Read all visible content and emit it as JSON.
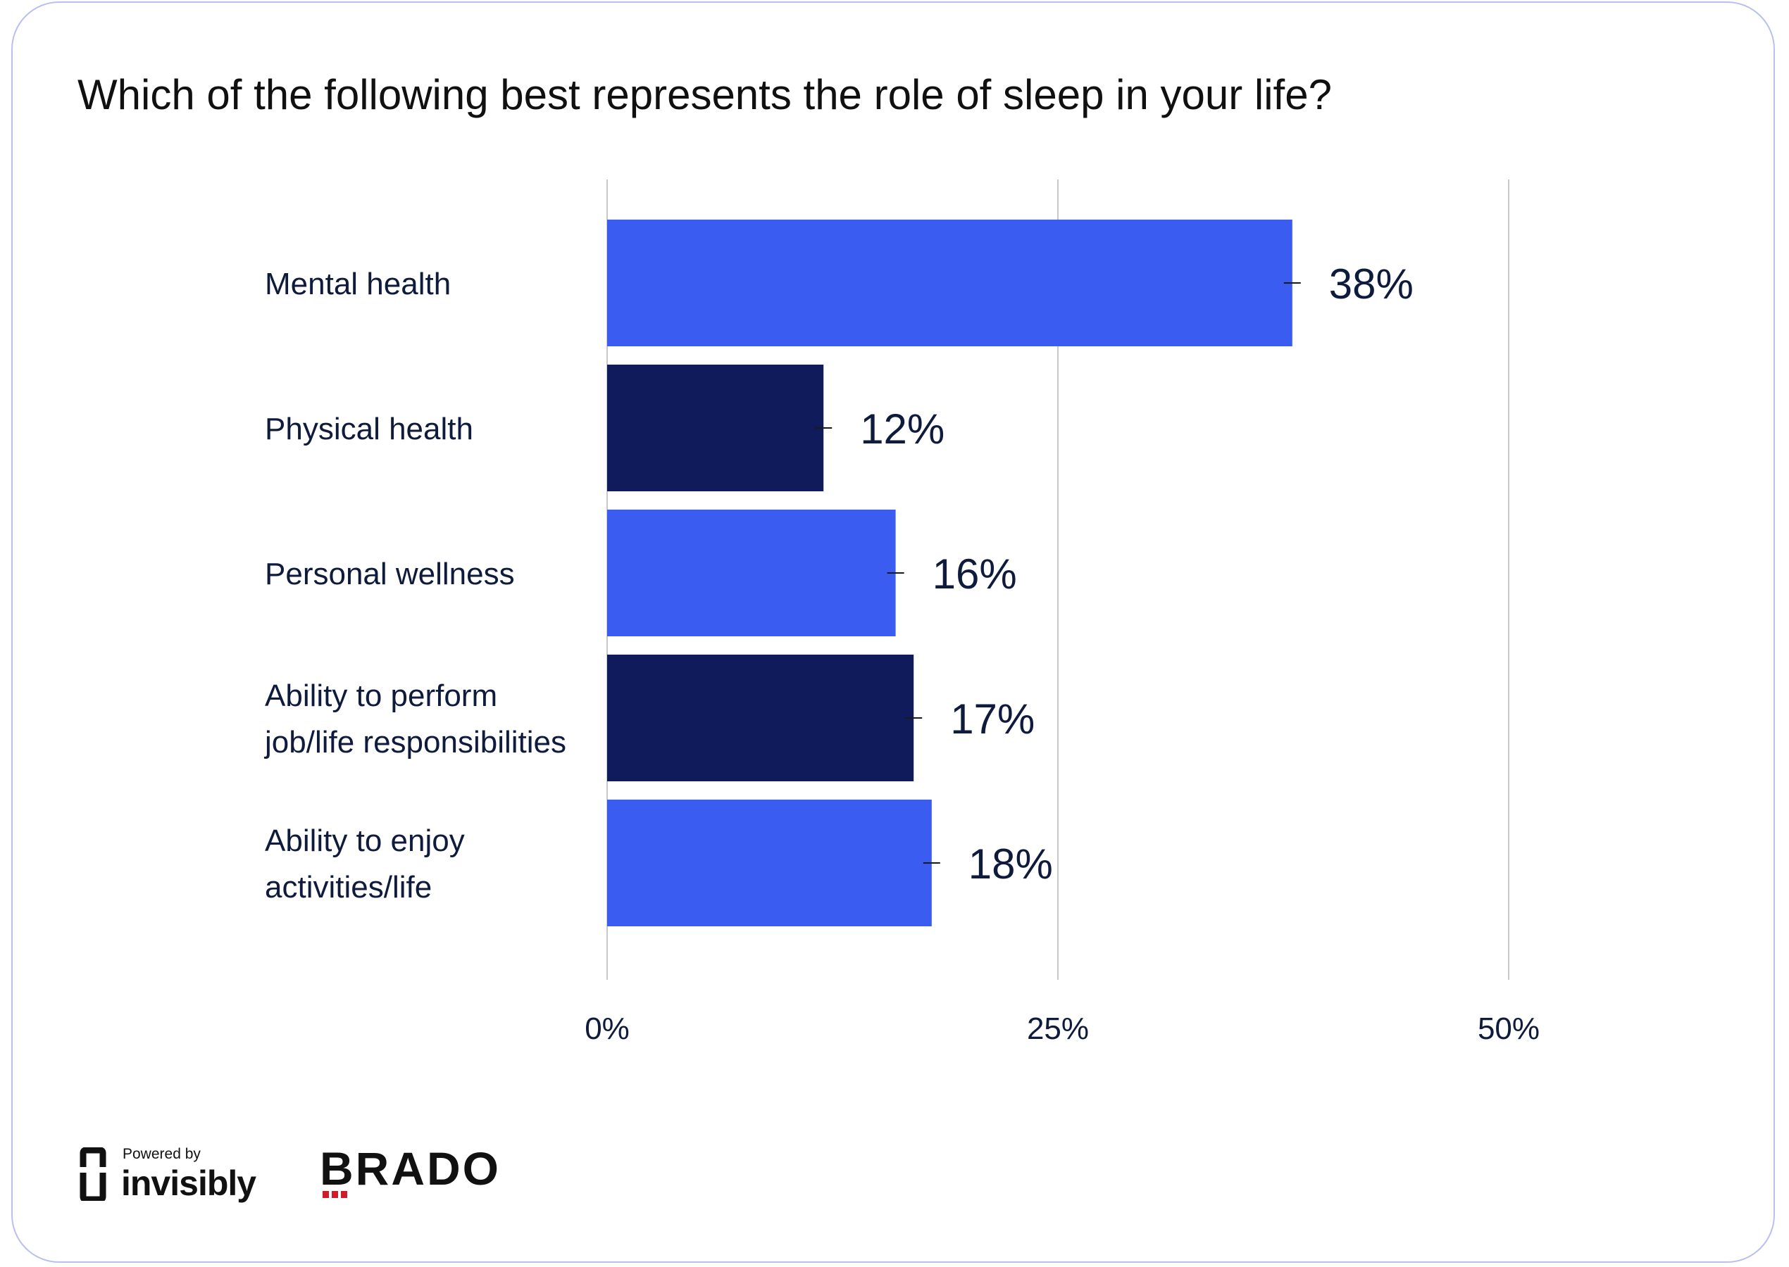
{
  "title": "Which of the following best represents the role of sleep in your life?",
  "colors": {
    "bar_primary": "#3a5cf0",
    "bar_secondary": "#101b5c",
    "text": "#0f1b3d",
    "grid": "#c8c8c8",
    "card_border": "#b9c0ef",
    "brado_red": "#d01c2a"
  },
  "chart_data": {
    "type": "bar",
    "orientation": "horizontal",
    "title": "Which of the following best represents the role of sleep in your life?",
    "categories": [
      [
        "Mental health"
      ],
      [
        "Physical health"
      ],
      [
        "Personal wellness"
      ],
      [
        "Ability to perform",
        "job/life responsibilities"
      ],
      [
        "Ability to enjoy",
        "activities/life"
      ]
    ],
    "values": [
      38,
      12,
      16,
      17,
      18
    ],
    "data_labels": [
      "38%",
      "12%",
      "16%",
      "17%",
      "18%"
    ],
    "bar_colors": [
      "#3a5cf0",
      "#101b5c",
      "#3a5cf0",
      "#101b5c",
      "#3a5cf0"
    ],
    "xlim": [
      0,
      50
    ],
    "x_ticks": [
      0,
      25,
      50
    ],
    "x_tick_labels": [
      "0%",
      "25%",
      "50%"
    ],
    "xlabel": "",
    "ylabel": "",
    "grid": true,
    "error_bars": true
  },
  "footer": {
    "powered_by": "Powered by",
    "invisibly": "invisibly",
    "brado": "BRADO"
  }
}
